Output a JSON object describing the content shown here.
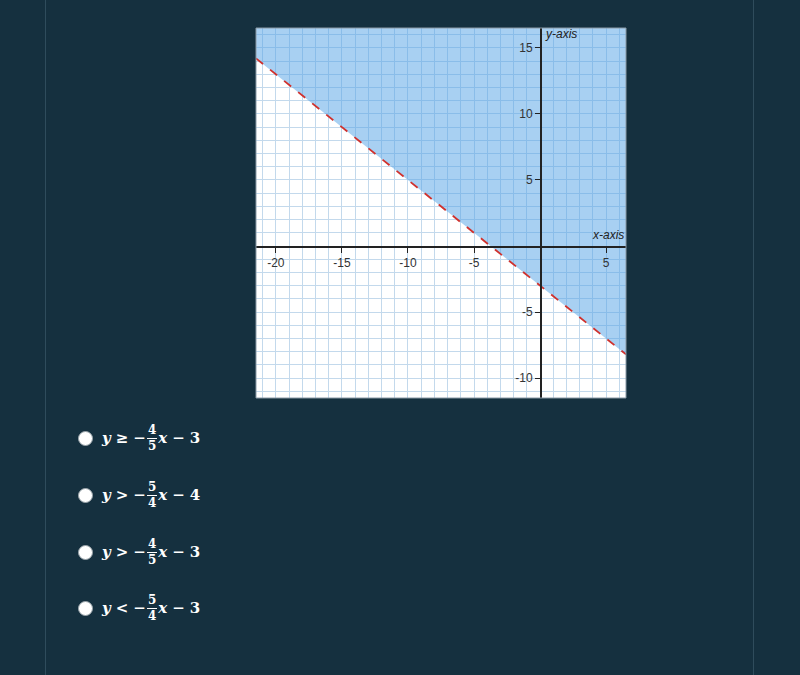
{
  "chart_data": {
    "type": "line",
    "xlabel": "x-axis",
    "ylabel": "y-axis",
    "x": [
      -21.5,
      6.5
    ],
    "series": [
      {
        "type": "area",
        "color": "#51a1e5",
        "values": [
          16.5,
          16.5
        ]
      },
      {
        "type": "line",
        "color": "#d0312d",
        "line_style": "dashed",
        "values": [
          14.2,
          -8.2
        ]
      }
    ],
    "xlim": [
      -21.5,
      6.5
    ],
    "ylim": [
      -11.5,
      16.5
    ],
    "xticks": [
      -20,
      -15,
      -10,
      -5,
      5
    ],
    "yticks": [
      -10,
      -5,
      5,
      10,
      15
    ],
    "grid": true
  },
  "choices": [
    {
      "lhs": "y",
      "op": "≥",
      "sign": "−",
      "num": 4,
      "den": 5,
      "var": "x",
      "const_op": "−",
      "const": 3
    },
    {
      "lhs": "y",
      "op": ">",
      "sign": "−",
      "num": 5,
      "den": 4,
      "var": "x",
      "const_op": "−",
      "const": 4
    },
    {
      "lhs": "y",
      "op": ">",
      "sign": "−",
      "num": 4,
      "den": 5,
      "var": "x",
      "const_op": "−",
      "const": 3
    },
    {
      "lhs": "y",
      "op": "<",
      "sign": "−",
      "num": 5,
      "den": 4,
      "var": "x",
      "const_op": "−",
      "const": 3
    }
  ]
}
